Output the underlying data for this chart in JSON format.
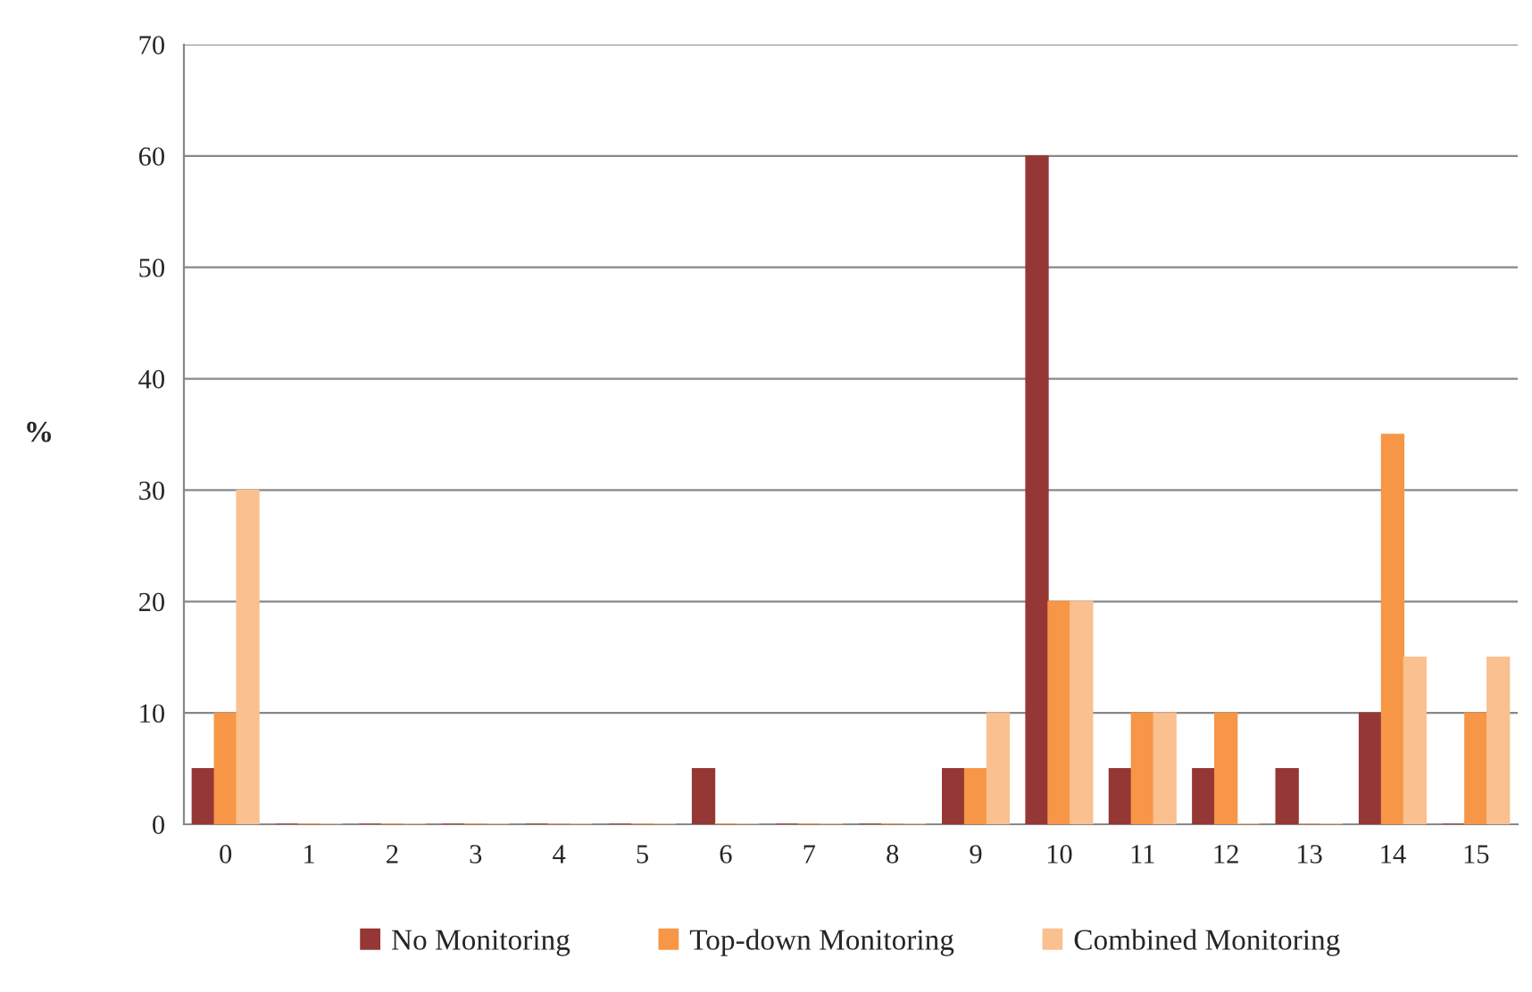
{
  "chart_data": {
    "type": "bar",
    "ylabel": "%",
    "categories": [
      "0",
      "1",
      "2",
      "3",
      "4",
      "5",
      "6",
      "7",
      "8",
      "9",
      "10",
      "11",
      "12",
      "13",
      "14",
      "15"
    ],
    "series": [
      {
        "name": "No Monitoring",
        "color": "#953735",
        "values": [
          5,
          0,
          0,
          0,
          0,
          0,
          5,
          0,
          0,
          5,
          60,
          5,
          5,
          5,
          10,
          0
        ]
      },
      {
        "name": "Top-down Monitoring",
        "color": "#f79646",
        "values": [
          10,
          0,
          0,
          0,
          0,
          0,
          0,
          0,
          0,
          5,
          20,
          10,
          10,
          0,
          35,
          10
        ]
      },
      {
        "name": "Combined Monitoring",
        "color": "#fac090",
        "values": [
          30,
          0,
          0,
          0,
          0,
          0,
          0,
          0,
          0,
          10,
          20,
          10,
          0,
          0,
          15,
          15
        ]
      }
    ],
    "ylim": [
      0,
      70
    ],
    "yticks": [
      0,
      10,
      20,
      30,
      40,
      50,
      60,
      70
    ],
    "grid": "y",
    "legend": "bottom"
  }
}
